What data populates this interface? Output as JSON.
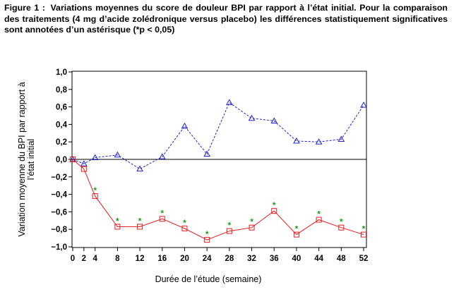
{
  "caption": {
    "label": "Figure 1 :",
    "text": "Variations moyennes du score de douleur BPI par rapport à l’état initial. Pour la comparaison des traitements (4 mg d’acide zolédronique versus placebo) les différences statistiquement significatives sont annotées d’un astérisque (*p < 0,05)"
  },
  "chart_data": {
    "type": "line",
    "title": "",
    "xlabel": "Durée de l’étude (semaine)",
    "ylabel_lines": [
      "Variation moyenne du BPI par rapport à",
      "l’état initial"
    ],
    "x": [
      0,
      2,
      4,
      8,
      12,
      16,
      20,
      24,
      28,
      32,
      36,
      40,
      44,
      48,
      52
    ],
    "x_tick_labels": [
      "0",
      "2",
      "4",
      "8",
      "12",
      "16",
      "20",
      "24",
      "28",
      "32",
      "36",
      "40",
      "44",
      "48",
      "52"
    ],
    "y_ticks": [
      1.0,
      0.8,
      0.6,
      0.4,
      0.2,
      0.0,
      -0.2,
      -0.4,
      -0.6,
      -0.8,
      -1.0
    ],
    "y_tick_labels": [
      "1,0",
      "0,8",
      "0,6",
      "0,4",
      "0,2",
      "0,0",
      "−0,2",
      "−0,4",
      "−0,6",
      "−0,8",
      "−1,0"
    ],
    "ylim": [
      -1.0,
      1.0
    ],
    "zero_line": true,
    "grid": false,
    "series": [
      {
        "key": "placebo",
        "color": "#2222cc",
        "line_style": "dashed",
        "marker": "triangle",
        "values": [
          0.0,
          -0.05,
          0.02,
          0.05,
          -0.11,
          0.03,
          0.38,
          0.06,
          0.65,
          0.47,
          0.44,
          0.21,
          0.2,
          0.23,
          0.62
        ]
      },
      {
        "key": "zoledronic",
        "color": "#ee1c1c",
        "line_style": "solid",
        "marker": "square",
        "values": [
          0.0,
          -0.11,
          -0.42,
          -0.77,
          -0.77,
          -0.68,
          -0.79,
          -0.92,
          -0.82,
          -0.78,
          -0.59,
          -0.86,
          -0.69,
          -0.78,
          -0.86
        ]
      }
    ],
    "significance_marker": "*",
    "significance_color": "#1a9c1a",
    "significant_indices": [
      2,
      3,
      4,
      5,
      6,
      7,
      8,
      9,
      10,
      11,
      12,
      13,
      14
    ]
  }
}
